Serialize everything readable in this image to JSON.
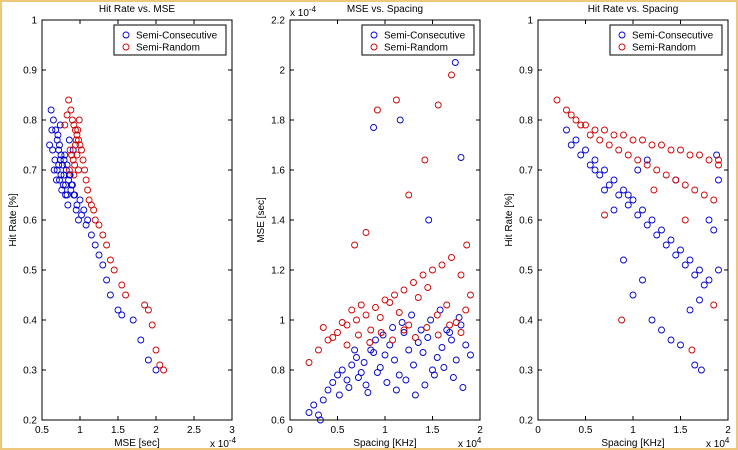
{
  "colors": {
    "semi_consecutive": "#0000cc",
    "semi_random": "#cc0000"
  },
  "chart_data": [
    {
      "type": "scatter",
      "title": "Hit Rate vs. MSE",
      "xlabel": "MSE [sec]",
      "ylabel": "Hit Rate [%]",
      "x_exponent": "x 10",
      "x_exponent_power": "-4",
      "xlim": [
        0.5,
        3
      ],
      "ylim": [
        0.2,
        1
      ],
      "xticks": [
        "0.5",
        "1",
        "1.5",
        "2",
        "2.5",
        "3"
      ],
      "yticks": [
        "0.2",
        "0.3",
        "0.4",
        "0.5",
        "0.6",
        "0.7",
        "0.8",
        "0.9",
        "1"
      ],
      "legend": [
        "Semi-Consecutive",
        "Semi-Random"
      ],
      "legend_position": "top-right",
      "series": [
        {
          "name": "Semi-Consecutive",
          "x": [
            0.62,
            0.65,
            0.68,
            0.7,
            0.72,
            0.74,
            0.66,
            0.69,
            0.71,
            0.73,
            0.75,
            0.77,
            0.79,
            0.81,
            0.83,
            0.64,
            0.67,
            0.7,
            0.73,
            0.76,
            0.79,
            0.82,
            0.85,
            0.88,
            0.72,
            0.75,
            0.78,
            0.81,
            0.84,
            0.87,
            0.9,
            0.93,
            0.96,
            0.8,
            0.83,
            0.86,
            0.89,
            0.92,
            0.95,
            0.98,
            1.0,
            1.05,
            1.1,
            1.15,
            1.2,
            1.25,
            1.3,
            1.35,
            1.4,
            1.5,
            1.55,
            1.7,
            1.8,
            1.9,
            2.0,
            0.6,
            0.63,
            0.74,
            0.86,
            0.91,
            1.02,
            1.08
          ],
          "y": [
            0.82,
            0.8,
            0.78,
            0.76,
            0.74,
            0.72,
            0.7,
            0.68,
            0.77,
            0.75,
            0.73,
            0.71,
            0.69,
            0.67,
            0.65,
            0.74,
            0.72,
            0.7,
            0.68,
            0.66,
            0.72,
            0.7,
            0.68,
            0.66,
            0.71,
            0.69,
            0.67,
            0.65,
            0.63,
            0.69,
            0.67,
            0.65,
            0.63,
            0.73,
            0.71,
            0.69,
            0.67,
            0.65,
            0.62,
            0.6,
            0.64,
            0.62,
            0.6,
            0.57,
            0.55,
            0.53,
            0.51,
            0.48,
            0.45,
            0.42,
            0.41,
            0.4,
            0.36,
            0.32,
            0.3,
            0.75,
            0.78,
            0.79,
            0.76,
            0.74,
            0.61,
            0.59
          ]
        },
        {
          "name": "Semi-Random",
          "x": [
            0.85,
            0.88,
            0.9,
            0.92,
            0.94,
            0.96,
            0.98,
            1.0,
            0.87,
            0.89,
            0.91,
            0.93,
            0.95,
            0.97,
            0.99,
            0.86,
            0.92,
            0.96,
            1.02,
            1.04,
            1.06,
            1.08,
            1.1,
            1.12,
            1.15,
            1.18,
            1.2,
            1.25,
            1.3,
            1.35,
            1.4,
            1.45,
            1.55,
            1.6,
            1.85,
            1.9,
            1.95,
            2.0,
            2.05,
            2.1,
            0.8,
            0.83,
            0.94,
            0.98
          ],
          "y": [
            0.84,
            0.82,
            0.8,
            0.79,
            0.78,
            0.77,
            0.76,
            0.75,
            0.74,
            0.73,
            0.72,
            0.71,
            0.76,
            0.78,
            0.8,
            0.7,
            0.69,
            0.73,
            0.74,
            0.72,
            0.7,
            0.68,
            0.66,
            0.64,
            0.63,
            0.62,
            0.6,
            0.59,
            0.57,
            0.55,
            0.52,
            0.5,
            0.47,
            0.45,
            0.43,
            0.42,
            0.39,
            0.34,
            0.31,
            0.3,
            0.79,
            0.81,
            0.75,
            0.7
          ]
        }
      ]
    },
    {
      "type": "scatter",
      "title": "MSE vs. Spacing",
      "xlabel": "Spacing [KHz]",
      "ylabel": "MSE [sec]",
      "x_exponent": "x 10",
      "x_exponent_power": "4",
      "y_exponent": "x 10",
      "y_exponent_power": "-4",
      "xlim": [
        0,
        2
      ],
      "ylim": [
        0.6,
        2.2
      ],
      "xticks": [
        "0",
        "0.5",
        "1",
        "1.5",
        "2"
      ],
      "yticks": [
        "0.6",
        "0.8",
        "1",
        "1.2",
        "1.4",
        "1.6",
        "1.8",
        "2",
        "2.2"
      ],
      "legend": [
        "Semi-Consecutive",
        "Semi-Random"
      ],
      "legend_position": "top-right",
      "series": [
        {
          "name": "Semi-Consecutive",
          "x": [
            0.2,
            0.25,
            0.3,
            0.35,
            0.4,
            0.45,
            0.5,
            0.55,
            0.6,
            0.65,
            0.7,
            0.75,
            0.8,
            0.85,
            0.9,
            0.95,
            1.0,
            1.05,
            1.1,
            1.15,
            1.2,
            1.25,
            1.3,
            1.35,
            1.4,
            1.45,
            1.5,
            1.55,
            1.6,
            1.65,
            1.7,
            1.75,
            1.8,
            1.85,
            1.9,
            0.52,
            0.62,
            0.72,
            0.82,
            0.92,
            1.02,
            1.12,
            1.22,
            1.32,
            1.42,
            1.52,
            1.62,
            1.72,
            1.82,
            0.68,
            0.78,
            0.88,
            0.98,
            1.08,
            1.18,
            1.28,
            1.38,
            1.48,
            1.58,
            1.68,
            1.78,
            0.88,
            1.16,
            1.74,
            1.8,
            1.46,
            0.32
          ],
          "y": [
            0.63,
            0.66,
            0.62,
            0.68,
            0.72,
            0.75,
            0.78,
            0.8,
            0.76,
            0.82,
            0.85,
            0.79,
            0.74,
            0.88,
            0.92,
            0.81,
            0.86,
            0.9,
            0.84,
            0.78,
            0.95,
            0.88,
            0.82,
            0.91,
            0.87,
            0.93,
            0.8,
            0.85,
            0.89,
            0.96,
            0.92,
            0.84,
            0.98,
            0.9,
            0.86,
            0.7,
            0.73,
            0.77,
            0.71,
            0.79,
            0.75,
            0.72,
            0.76,
            0.7,
            0.74,
            0.78,
            0.81,
            0.77,
            0.73,
            0.88,
            0.83,
            0.87,
            0.94,
            0.97,
            0.99,
            1.02,
            0.96,
            1.0,
            1.04,
            0.95,
            1.01,
            1.77,
            1.8,
            2.03,
            1.65,
            1.4,
            0.6
          ]
        },
        {
          "name": "Semi-Random",
          "x": [
            0.2,
            0.3,
            0.4,
            0.5,
            0.6,
            0.7,
            0.8,
            0.9,
            1.0,
            1.1,
            1.2,
            1.3,
            1.4,
            1.5,
            1.6,
            1.7,
            1.8,
            1.9,
            0.35,
            0.45,
            0.55,
            0.65,
            0.75,
            0.85,
            0.95,
            1.05,
            1.15,
            1.25,
            1.35,
            1.45,
            1.55,
            1.65,
            1.75,
            1.85,
            0.6,
            0.72,
            0.84,
            0.96,
            1.08,
            1.2,
            1.32,
            1.44,
            1.56,
            1.68,
            1.8,
            0.92,
            1.12,
            1.56,
            1.7,
            1.86,
            0.68,
            0.8,
            1.25,
            1.42
          ],
          "y": [
            0.83,
            0.88,
            0.92,
            0.95,
            0.98,
            1.0,
            1.02,
            1.05,
            1.08,
            1.1,
            1.12,
            1.15,
            1.18,
            1.2,
            1.22,
            1.25,
            1.18,
            1.1,
            0.97,
            0.93,
            0.99,
            1.04,
            1.06,
            0.96,
            1.01,
            1.07,
            1.03,
            0.98,
            1.09,
            1.13,
            1.02,
            1.06,
            0.99,
            1.04,
            0.9,
            0.94,
            0.91,
            0.95,
            0.92,
            0.96,
            0.93,
            0.97,
            0.94,
            0.98,
            0.95,
            1.84,
            1.88,
            1.86,
            1.98,
            1.3,
            1.3,
            1.35,
            1.5,
            1.64
          ]
        }
      ]
    },
    {
      "type": "scatter",
      "title": "Hit Rate vs. Spacing",
      "xlabel": "Spacing [KHz]",
      "ylabel": "Hit Rate [%]",
      "x_exponent": "x 10",
      "x_exponent_power": "4",
      "xlim": [
        0,
        2
      ],
      "ylim": [
        0.2,
        1
      ],
      "xticks": [
        "0",
        "0.5",
        "1",
        "1.5",
        "2"
      ],
      "yticks": [
        "0.2",
        "0.3",
        "0.4",
        "0.5",
        "0.6",
        "0.7",
        "0.8",
        "0.9",
        "1"
      ],
      "legend": [
        "Semi-Consecutive",
        "Semi-Random"
      ],
      "legend_position": "top-right",
      "series": [
        {
          "name": "Semi-Consecutive",
          "x": [
            0.3,
            0.4,
            0.5,
            0.6,
            0.7,
            0.8,
            0.9,
            1.0,
            1.1,
            1.2,
            1.3,
            1.4,
            1.5,
            1.6,
            1.7,
            1.8,
            1.9,
            0.35,
            0.45,
            0.55,
            0.65,
            0.75,
            0.85,
            0.95,
            1.05,
            1.15,
            1.25,
            1.35,
            1.45,
            1.55,
            1.65,
            1.75,
            1.85,
            0.6,
            0.8,
            1.0,
            1.2,
            1.4,
            1.6,
            1.8,
            0.7,
            0.9,
            1.1,
            1.3,
            1.5,
            1.7,
            1.9,
            0.95,
            1.05,
            1.15,
            1.45,
            1.65,
            1.72,
            1.88
          ],
          "y": [
            0.78,
            0.76,
            0.74,
            0.72,
            0.7,
            0.68,
            0.66,
            0.64,
            0.62,
            0.6,
            0.58,
            0.56,
            0.54,
            0.52,
            0.5,
            0.48,
            0.68,
            0.75,
            0.73,
            0.71,
            0.69,
            0.67,
            0.65,
            0.63,
            0.61,
            0.59,
            0.57,
            0.55,
            0.53,
            0.51,
            0.49,
            0.47,
            0.58,
            0.7,
            0.62,
            0.45,
            0.4,
            0.36,
            0.42,
            0.6,
            0.66,
            0.52,
            0.48,
            0.38,
            0.35,
            0.44,
            0.5,
            0.65,
            0.7,
            0.72,
            0.68,
            0.31,
            0.3,
            0.73
          ]
        },
        {
          "name": "Semi-Random",
          "x": [
            0.2,
            0.3,
            0.4,
            0.5,
            0.6,
            0.7,
            0.8,
            0.9,
            1.0,
            1.1,
            1.2,
            1.3,
            1.4,
            1.5,
            1.6,
            1.7,
            1.8,
            1.9,
            0.35,
            0.45,
            0.55,
            0.65,
            0.75,
            0.85,
            0.95,
            1.05,
            1.15,
            1.25,
            1.35,
            1.45,
            1.55,
            1.65,
            1.75,
            1.85,
            0.7,
            0.88,
            1.22,
            1.55,
            1.62,
            1.85,
            1.9
          ],
          "y": [
            0.84,
            0.82,
            0.8,
            0.79,
            0.78,
            0.78,
            0.77,
            0.77,
            0.76,
            0.76,
            0.75,
            0.75,
            0.74,
            0.74,
            0.73,
            0.73,
            0.72,
            0.71,
            0.81,
            0.79,
            0.77,
            0.76,
            0.75,
            0.74,
            0.73,
            0.72,
            0.71,
            0.7,
            0.69,
            0.68,
            0.67,
            0.66,
            0.65,
            0.64,
            0.61,
            0.4,
            0.66,
            0.6,
            0.34,
            0.43,
            0.72
          ]
        }
      ]
    }
  ]
}
